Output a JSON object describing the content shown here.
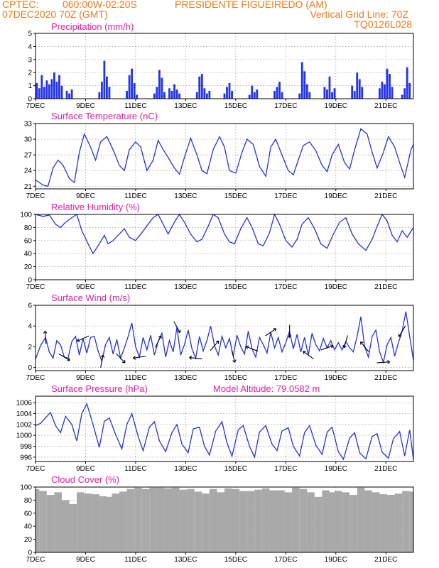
{
  "header": {
    "line1_left": "CPTEC:",
    "line1_coords": "060:00W-02:20S",
    "line1_station": "PRESIDENTE FIGUEIREDO (AM)",
    "line2_left": "07DEC2020 70Z (GMT)",
    "line2_right": "Vertical Grid Line: 70Z",
    "line3_right": "TQ0126L028"
  },
  "x_ticks": [
    "7DEC",
    "9DEC",
    "11DEC",
    "13DEC",
    "15DEC",
    "17DEC",
    "19DEC",
    "21DEC"
  ],
  "colors": {
    "header": "#e87a1e",
    "panel_title": "#e0209a",
    "line": "#2233dd",
    "bars": "#2233ee",
    "cloud": "#a9a9a9"
  },
  "chart_data": [
    {
      "id": "precip",
      "type": "bar",
      "title": "Precipitation (mm/h)",
      "x_unit": "days since 7DEC",
      "xlim": [
        0,
        15.1
      ],
      "ylim": [
        0,
        5
      ],
      "yticks": [
        0,
        1,
        2,
        3,
        4,
        5
      ],
      "grid": true,
      "x": [
        0.05,
        0.15,
        0.25,
        0.35,
        0.45,
        0.55,
        0.65,
        0.75,
        0.85,
        0.95,
        1.05,
        1.25,
        1.35,
        1.45,
        2.55,
        2.65,
        2.75,
        2.85,
        2.95,
        3.65,
        3.75,
        3.85,
        3.95,
        4.05,
        4.75,
        4.85,
        4.95,
        5.05,
        5.15,
        5.35,
        5.45,
        5.55,
        5.65,
        5.75,
        6.45,
        6.55,
        6.65,
        6.75,
        6.85,
        6.95,
        7.55,
        7.65,
        7.75,
        7.85,
        8.55,
        8.65,
        8.75,
        8.85,
        9.55,
        9.65,
        9.75,
        9.85,
        10.55,
        10.65,
        10.75,
        10.85,
        10.95,
        11.55,
        11.65,
        11.75,
        11.85,
        11.95,
        12.65,
        12.75,
        12.85,
        12.95,
        13.05,
        13.75,
        13.85,
        13.95,
        14.05,
        14.15,
        14.25,
        14.65,
        14.75,
        14.85,
        14.95
      ],
      "values": [
        1.2,
        0.8,
        1.8,
        0.9,
        1.4,
        1.1,
        1.5,
        2.0,
        1.3,
        1.8,
        1.0,
        0.6,
        0.4,
        0.7,
        0.5,
        1.3,
        2.9,
        1.7,
        0.9,
        0.6,
        1.8,
        2.3,
        1.2,
        0.3,
        0.4,
        0.9,
        2.2,
        1.6,
        0.5,
        0.8,
        0.6,
        1.1,
        0.7,
        0.4,
        0.5,
        1.7,
        1.9,
        0.8,
        0.4,
        0.6,
        0.4,
        0.9,
        1.2,
        0.6,
        0.3,
        1.0,
        0.5,
        0.7,
        0.6,
        0.9,
        1.3,
        0.5,
        0.4,
        2.8,
        2.1,
        1.1,
        0.5,
        0.9,
        0.7,
        1.7,
        0.5,
        0.8,
        1.0,
        0.6,
        2.0,
        1.5,
        0.9,
        0.8,
        1.3,
        1.1,
        2.3,
        1.9,
        0.9,
        0.3,
        0.8,
        2.4,
        1.2
      ]
    },
    {
      "id": "temp",
      "type": "line",
      "title": "Surface Temperature (nC)",
      "x_unit": "days since 7DEC",
      "xlim": [
        0,
        15.1
      ],
      "ylim": [
        20.5,
        33
      ],
      "yticks": [
        21,
        24,
        27,
        30,
        33
      ],
      "grid": true,
      "x": [
        0,
        0.3,
        0.5,
        0.7,
        0.9,
        1.1,
        1.35,
        1.55,
        1.75,
        1.95,
        2.2,
        2.4,
        2.6,
        2.85,
        3.1,
        3.35,
        3.55,
        3.75,
        4.0,
        4.2,
        4.45,
        4.7,
        4.9,
        5.1,
        5.3,
        5.55,
        5.75,
        5.95,
        6.2,
        6.45,
        6.65,
        6.85,
        7.1,
        7.35,
        7.55,
        7.75,
        8.0,
        8.25,
        8.45,
        8.7,
        8.95,
        9.2,
        9.4,
        9.6,
        9.85,
        10.1,
        10.3,
        10.5,
        10.7,
        10.95,
        11.2,
        11.45,
        11.65,
        11.85,
        12.1,
        12.35,
        12.55,
        12.75,
        13.0,
        13.25,
        13.45,
        13.65,
        13.9,
        14.1,
        14.35,
        14.55,
        14.75,
        15.0,
        15.1
      ],
      "values": [
        22.2,
        21.2,
        21.0,
        24.5,
        26.0,
        25.0,
        22.5,
        21.7,
        27.5,
        31.0,
        28.5,
        26.0,
        29.5,
        30.5,
        28.0,
        25.0,
        24.0,
        28.0,
        29.5,
        28.5,
        24.0,
        26.0,
        29.8,
        28.0,
        26.5,
        24.5,
        23.3,
        26.5,
        30.2,
        27.0,
        24.0,
        23.4,
        28.0,
        30.5,
        28.5,
        24.0,
        23.5,
        27.5,
        30.0,
        29.0,
        24.8,
        22.9,
        28.5,
        30.0,
        27.0,
        24.0,
        23.2,
        26.0,
        28.8,
        29.5,
        27.8,
        25.0,
        23.8,
        27.0,
        29.0,
        25.5,
        24.3,
        28.0,
        32.0,
        31.0,
        27.5,
        24.5,
        27.5,
        30.5,
        28.5,
        25.5,
        22.7,
        28.0,
        29.0
      ]
    },
    {
      "id": "rh",
      "type": "line",
      "title": "Relative Humidity (%)",
      "x_unit": "days since 7DEC",
      "xlim": [
        0,
        15.1
      ],
      "ylim": [
        0,
        100
      ],
      "yticks": [
        0,
        20,
        40,
        60,
        80,
        100
      ],
      "grid": true,
      "x": [
        0,
        0.3,
        0.55,
        0.8,
        1.0,
        1.2,
        1.45,
        1.65,
        1.85,
        2.1,
        2.3,
        2.55,
        2.75,
        2.9,
        3.1,
        3.35,
        3.55,
        3.75,
        4.0,
        4.25,
        4.5,
        4.7,
        4.9,
        5.1,
        5.3,
        5.55,
        5.75,
        5.95,
        6.2,
        6.45,
        6.65,
        6.9,
        7.1,
        7.3,
        7.55,
        7.75,
        7.95,
        8.2,
        8.45,
        8.65,
        8.9,
        9.1,
        9.35,
        9.55,
        9.75,
        10.0,
        10.25,
        10.45,
        10.65,
        10.9,
        11.15,
        11.4,
        11.65,
        11.9,
        12.15,
        12.4,
        12.65,
        12.9,
        13.2,
        13.45,
        13.65,
        13.85,
        14.05,
        14.25,
        14.45,
        14.65,
        14.85,
        15.1
      ],
      "values": [
        100,
        97,
        99,
        85,
        80,
        88,
        95,
        100,
        75,
        55,
        40,
        55,
        68,
        55,
        60,
        70,
        78,
        65,
        60,
        72,
        85,
        95,
        100,
        85,
        70,
        88,
        100,
        88,
        70,
        58,
        62,
        82,
        100,
        95,
        70,
        58,
        55,
        78,
        95,
        80,
        55,
        52,
        72,
        100,
        85,
        60,
        50,
        62,
        85,
        95,
        78,
        55,
        48,
        70,
        88,
        95,
        70,
        55,
        45,
        62,
        82,
        100,
        90,
        68,
        58,
        75,
        65,
        80
      ]
    },
    {
      "id": "wind",
      "type": "line",
      "title": "Surface Wind (m/s)",
      "x_unit": "days since 7DEC",
      "xlim": [
        0,
        15.1
      ],
      "ylim": [
        -0.3,
        6
      ],
      "yticks": [
        0,
        2,
        4,
        6
      ],
      "grid": true,
      "x": [
        0,
        0.2,
        0.4,
        0.55,
        0.7,
        0.85,
        1.0,
        1.15,
        1.3,
        1.45,
        1.6,
        1.75,
        1.9,
        2.05,
        2.2,
        2.35,
        2.5,
        2.65,
        2.8,
        2.95,
        3.1,
        3.25,
        3.4,
        3.55,
        3.7,
        3.85,
        4.0,
        4.15,
        4.3,
        4.45,
        4.6,
        4.75,
        4.9,
        5.05,
        5.2,
        5.35,
        5.5,
        5.65,
        5.8,
        5.95,
        6.1,
        6.25,
        6.4,
        6.55,
        6.7,
        6.85,
        7.0,
        7.15,
        7.3,
        7.45,
        7.6,
        7.75,
        7.9,
        8.05,
        8.2,
        8.35,
        8.5,
        8.65,
        8.8,
        8.95,
        9.1,
        9.25,
        9.4,
        9.55,
        9.7,
        9.85,
        10.0,
        10.15,
        10.3,
        10.45,
        10.6,
        10.75,
        10.9,
        11.05,
        11.2,
        11.35,
        11.5,
        11.65,
        11.8,
        11.95,
        12.1,
        12.25,
        12.4,
        12.55,
        12.7,
        12.85,
        13.0,
        13.15,
        13.3,
        13.45,
        13.6,
        13.75,
        13.9,
        14.05,
        14.2,
        14.35,
        14.5,
        14.65,
        14.8,
        14.95,
        15.1
      ],
      "values": [
        0.8,
        2.1,
        2.9,
        1.5,
        0.9,
        2.6,
        2.2,
        1.0,
        0.9,
        2.5,
        3.0,
        1.2,
        2.8,
        1.4,
        2.9,
        3.0,
        1.6,
        0.6,
        2.2,
        2.9,
        1.3,
        2.7,
        0.9,
        1.9,
        3.0,
        4.3,
        2.0,
        1.0,
        2.9,
        1.7,
        3.1,
        1.2,
        2.5,
        3.3,
        1.0,
        2.6,
        1.5,
        3.9,
        1.2,
        2.2,
        3.6,
        1.8,
        0.9,
        3.0,
        1.6,
        2.6,
        4.0,
        2.1,
        1.2,
        3.0,
        1.9,
        2.8,
        1.1,
        3.1,
        2.0,
        1.3,
        3.5,
        1.8,
        1.0,
        2.9,
        2.2,
        1.4,
        3.4,
        1.9,
        2.9,
        1.5,
        2.4,
        3.5,
        1.8,
        3.2,
        1.5,
        2.9,
        1.2,
        3.3,
        2.2,
        1.6,
        2.8,
        1.9,
        2.6,
        1.7,
        2.4,
        1.7,
        2.5,
        1.9,
        1.5,
        3.0,
        4.9,
        2.0,
        1.0,
        3.0,
        3.6,
        1.5,
        0.5,
        2.2,
        2.9,
        1.1,
        2.4,
        3.5,
        5.4,
        3.0,
        0.7
      ]
    },
    {
      "id": "pressure",
      "type": "line",
      "title": "Surface Pressure (hPa)",
      "annotation": "Model Altitude: 79.0582 m",
      "x_unit": "days since 7DEC",
      "xlim": [
        0,
        15.1
      ],
      "ylim": [
        995.2,
        1007.2
      ],
      "yticks": [
        996,
        998,
        1000,
        1002,
        1004,
        1006
      ],
      "grid": true,
      "x": [
        0,
        0.2,
        0.45,
        0.6,
        0.8,
        1.0,
        1.2,
        1.45,
        1.65,
        1.85,
        2.05,
        2.3,
        2.55,
        2.75,
        2.95,
        3.2,
        3.45,
        3.65,
        3.85,
        4.1,
        4.3,
        4.55,
        4.75,
        4.95,
        5.2,
        5.45,
        5.65,
        5.85,
        6.1,
        6.3,
        6.55,
        6.75,
        6.95,
        7.2,
        7.45,
        7.65,
        7.85,
        8.1,
        8.3,
        8.55,
        8.75,
        8.95,
        9.2,
        9.45,
        9.65,
        9.85,
        10.1,
        10.3,
        10.55,
        10.75,
        10.95,
        11.2,
        11.45,
        11.65,
        11.85,
        12.1,
        12.3,
        12.55,
        12.75,
        12.95,
        13.2,
        13.45,
        13.65,
        13.85,
        14.1,
        14.3,
        14.55,
        14.75,
        14.95,
        15.1
      ],
      "values": [
        1001.8,
        1002.2,
        1003.5,
        1004.2,
        1001.8,
        1000.5,
        1003.5,
        1002.0,
        999.0,
        1004.0,
        1005.8,
        1002.0,
        997.8,
        1002.6,
        1003.2,
        1000.2,
        997.5,
        1002.0,
        1004.0,
        999.8,
        997.2,
        1001.5,
        1002.5,
        999.0,
        997.0,
        1000.5,
        1002.0,
        998.4,
        996.8,
        1001.2,
        1001.5,
        998.0,
        996.4,
        1000.8,
        1002.5,
        998.6,
        996.2,
        1001.0,
        1001.8,
        998.0,
        996.0,
        1000.6,
        1001.8,
        998.4,
        997.2,
        1000.8,
        1001.4,
        998.0,
        996.2,
        1000.5,
        1001.8,
        998.2,
        996.5,
        1000.6,
        1001.5,
        997.0,
        995.6,
        999.5,
        1000.5,
        996.8,
        995.7,
        999.8,
        1000.3,
        996.9,
        995.8,
        999.4,
        1000.7,
        996.2,
        1001.0,
        995.6
      ]
    },
    {
      "id": "cloud",
      "type": "area",
      "title": "Cloud Cover (%)",
      "x_unit": "days since 7DEC",
      "xlim": [
        0,
        15.1
      ],
      "ylim": [
        0,
        100
      ],
      "yticks": [
        0,
        20,
        40,
        60,
        80,
        100
      ],
      "grid": true,
      "x": [
        0,
        0.3,
        0.6,
        0.9,
        1.2,
        1.5,
        1.8,
        2.1,
        2.4,
        2.7,
        2.9,
        3.0,
        3.2,
        3.5,
        3.8,
        4.1,
        4.4,
        4.7,
        5.0,
        5.3,
        5.6,
        5.9,
        6.0,
        6.2,
        6.5,
        6.8,
        7.1,
        7.4,
        7.7,
        8.0,
        8.3,
        8.6,
        8.9,
        9.2,
        9.5,
        9.8,
        10.1,
        10.4,
        10.7,
        11.0,
        11.3,
        11.6,
        11.8,
        11.9,
        12.1,
        12.4,
        12.7,
        13.0,
        13.3,
        13.6,
        13.9,
        14.2,
        14.5,
        14.8,
        15.1
      ],
      "values": [
        97,
        94,
        88,
        92,
        80,
        74,
        92,
        90,
        89,
        86,
        85,
        2,
        90,
        93,
        97,
        99,
        97,
        99,
        99,
        98,
        99,
        96,
        2,
        97,
        93,
        90,
        97,
        92,
        98,
        97,
        94,
        94,
        96,
        98,
        95,
        95,
        92,
        99,
        97,
        92,
        85,
        95,
        92,
        2,
        94,
        92,
        88,
        99,
        95,
        92,
        89,
        88,
        90,
        94,
        93
      ]
    }
  ]
}
